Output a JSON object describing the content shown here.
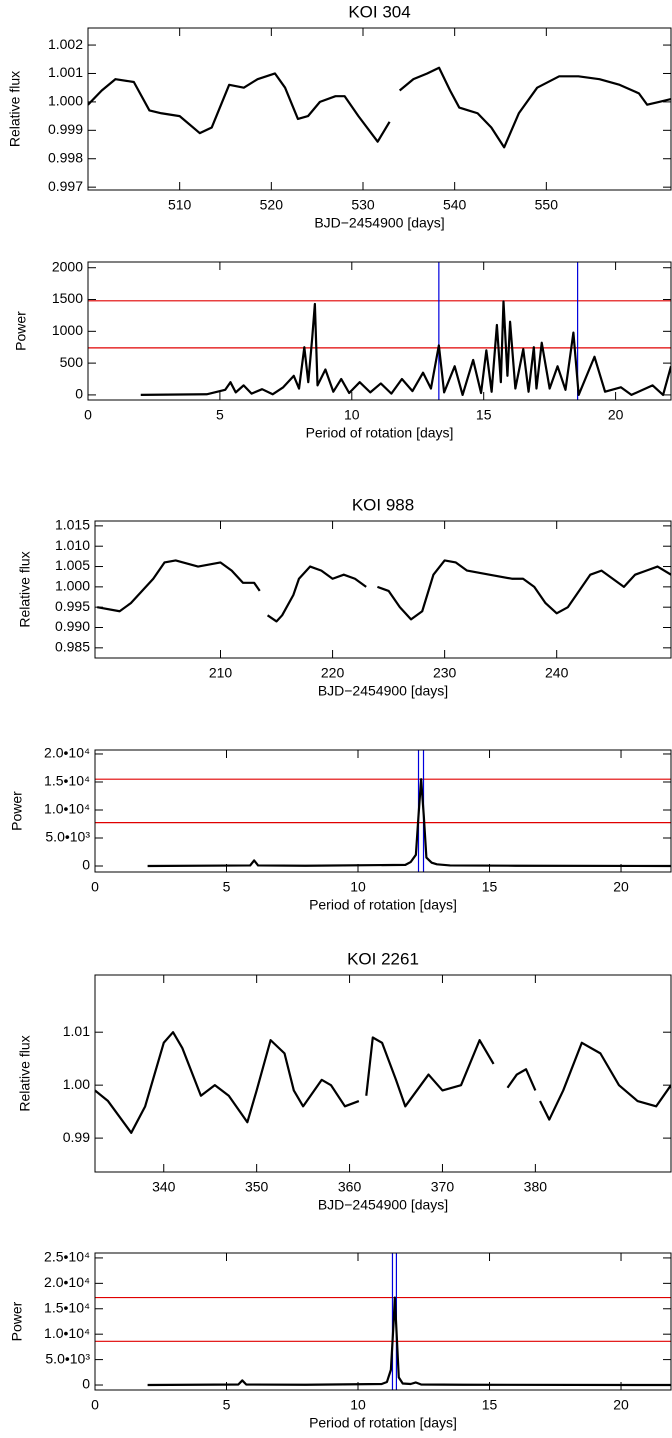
{
  "chart_data": [
    {
      "type": "line",
      "title": "KOI 304",
      "xlabel": "BJD−2454900 [days]",
      "ylabel": "Relative flux",
      "xlim": [
        500,
        563.6
      ],
      "ylim": [
        0.9969,
        1.0026
      ],
      "xticks": [
        510,
        520,
        530,
        540,
        550
      ],
      "yticks": [
        0.997,
        0.998,
        0.999,
        {
          "value": 1.0,
          "label": "1.000"
        },
        1.001,
        1.002
      ],
      "color": "#000000",
      "x": [
        500,
        501.5,
        503,
        505,
        506.7,
        508,
        510,
        512.2,
        513.5,
        515.4,
        517,
        518.5,
        520.4,
        521.5,
        522.9,
        524,
        525.3,
        527,
        528,
        529.5,
        531.6,
        532.9,
        null,
        534,
        535.5,
        537,
        538.3,
        539.5,
        540.5,
        541.5,
        542.5,
        544,
        545.4,
        547,
        549,
        551.4,
        553.5,
        555.8,
        558,
        560.1,
        561,
        562.3,
        563.6
      ],
      "values": [
        0.9999,
        1.0004,
        1.0008,
        1.0007,
        0.9997,
        0.9996,
        0.9995,
        0.9989,
        0.9991,
        1.0006,
        1.0005,
        1.0008,
        1.001,
        1.0005,
        0.9994,
        0.9995,
        1.0,
        1.0002,
        1.0002,
        0.9995,
        0.9986,
        0.9993,
        null,
        1.0004,
        1.0008,
        1.001,
        1.0012,
        1.0004,
        0.9998,
        0.9997,
        0.9996,
        0.9991,
        0.9984,
        0.9996,
        1.0005,
        1.0009,
        1.0009,
        1.0008,
        1.0006,
        1.0003,
        0.9999,
        1.0,
        1.0001
      ]
    },
    {
      "type": "line",
      "xlabel": "Period of rotation [days]",
      "ylabel": "Power",
      "xlim": [
        0,
        22.1
      ],
      "ylim": [
        -80,
        2090
      ],
      "xticks": [
        0,
        5,
        10,
        15,
        20
      ],
      "yticks": [
        0,
        500,
        1000,
        1500,
        2000
      ],
      "color": "#000000",
      "hlines": {
        "values": [
          1480,
          740
        ],
        "color": "#e00000"
      },
      "vlines": {
        "values": [
          13.3,
          18.56
        ],
        "color": "#0000dd"
      },
      "x": [
        2,
        4.5,
        5.2,
        5.4,
        5.6,
        5.9,
        6.2,
        6.6,
        7,
        7.4,
        7.8,
        8.0,
        8.2,
        8.35,
        8.5,
        8.6,
        8.7,
        9.0,
        9.3,
        9.6,
        9.9,
        10.3,
        10.7,
        11.1,
        11.5,
        11.9,
        12.3,
        12.7,
        13.0,
        13.3,
        13.5,
        13.9,
        14.2,
        14.6,
        14.9,
        15.1,
        15.3,
        15.5,
        15.65,
        15.75,
        15.9,
        16.0,
        16.2,
        16.5,
        16.7,
        16.9,
        17.0,
        17.2,
        17.5,
        17.8,
        18.1,
        18.4,
        18.6,
        19.2,
        19.6,
        20.2,
        20.6,
        21.4,
        21.8,
        22.1
      ],
      "values": [
        0,
        10,
        80,
        200,
        40,
        150,
        20,
        90,
        10,
        120,
        300,
        100,
        750,
        200,
        900,
        1430,
        150,
        400,
        50,
        250,
        30,
        200,
        40,
        180,
        20,
        250,
        60,
        350,
        100,
        780,
        40,
        450,
        0,
        550,
        30,
        700,
        50,
        1100,
        200,
        1470,
        300,
        1150,
        100,
        720,
        50,
        750,
        100,
        820,
        100,
        450,
        80,
        980,
        0,
        600,
        50,
        120,
        0,
        150,
        0,
        450
      ]
    },
    {
      "type": "line",
      "title": "KOI 988",
      "xlabel": "BJD−2454900 [days]",
      "ylabel": "Relative flux",
      "xlim": [
        198.8,
        250.2
      ],
      "ylim": [
        0.9825,
        1.0162
      ],
      "xticks": [
        210,
        220,
        230,
        240
      ],
      "yticks": [
        0.985,
        {
          "value": 0.99,
          "label": "0.990"
        },
        0.995,
        {
          "value": 1.0,
          "label": "1.000"
        },
        1.005,
        {
          "value": 1.01,
          "label": "1.010"
        },
        1.015
      ],
      "color": "#000000",
      "x": [
        199,
        201,
        202,
        204,
        205,
        206,
        208,
        210,
        211,
        212,
        213,
        213.5,
        null,
        214.2,
        215,
        215.5,
        216.5,
        217,
        218,
        219,
        220,
        221,
        222,
        223,
        null,
        224,
        225,
        226,
        227,
        228,
        229,
        230,
        231,
        232,
        234,
        236,
        237,
        238,
        239,
        240,
        241,
        242,
        243,
        244,
        245,
        246,
        247,
        248,
        249,
        250.2
      ],
      "values": [
        0.995,
        0.994,
        0.996,
        1.002,
        1.006,
        1.0065,
        1.005,
        1.006,
        1.004,
        1.001,
        1.001,
        0.999,
        null,
        0.993,
        0.9915,
        0.993,
        0.998,
        1.002,
        1.005,
        1.004,
        1.002,
        1.003,
        1.002,
        1.0,
        null,
        1.0,
        0.999,
        0.995,
        0.992,
        0.994,
        1.003,
        1.0065,
        1.006,
        1.004,
        1.003,
        1.002,
        1.002,
        1.0,
        0.996,
        0.9935,
        0.995,
        0.999,
        1.003,
        1.004,
        1.002,
        1.0,
        1.003,
        1.004,
        1.005,
        1.003
      ]
    },
    {
      "type": "line",
      "xlabel": "Period of rotation [days]",
      "ylabel": "Power",
      "xlim": [
        0,
        21.9
      ],
      "ylim": [
        -1070,
        20710
      ],
      "xticks": [
        0,
        5,
        10,
        15,
        20
      ],
      "yticks": [
        0,
        {
          "value": 5000,
          "label": "5.0•10³"
        },
        {
          "value": 10000,
          "label": "1.0•10⁴"
        },
        {
          "value": 15000,
          "label": "1.5•10⁴"
        },
        {
          "value": 20000,
          "label": "2.0•10⁴"
        }
      ],
      "color": "#000000",
      "hlines": {
        "values": [
          15500,
          7750
        ],
        "color": "#e00000"
      },
      "vlines": {
        "values": [
          12.3,
          12.49
        ],
        "color": "#0000dd"
      },
      "x": [
        2,
        5.9,
        6.05,
        6.2,
        8,
        11.8,
        12.0,
        12.2,
        12.3,
        12.4,
        12.5,
        12.6,
        12.8,
        13.0,
        13.5,
        16,
        21.9
      ],
      "values": [
        0,
        100,
        1000,
        100,
        50,
        200,
        700,
        2000,
        9000,
        15500,
        9000,
        1500,
        600,
        300,
        100,
        50,
        0
      ]
    },
    {
      "type": "line",
      "title": "KOI 2261",
      "xlabel": "BJD−2454900 [days]",
      "ylabel": "Relative flux",
      "xlim": [
        332.6,
        394.6
      ],
      "ylim": [
        0.9836,
        1.0208
      ],
      "xticks": [
        340,
        350,
        360,
        370,
        380
      ],
      "yticks": [
        0.99,
        {
          "value": 1.0,
          "label": "1.00"
        },
        1.01
      ],
      "color": "#000000",
      "x": [
        332.6,
        334,
        336.5,
        338,
        340,
        341,
        342,
        344,
        345.5,
        347,
        349,
        350,
        351.5,
        353,
        354,
        355,
        357,
        358,
        359.5,
        361,
        null,
        361.8,
        362.5,
        363.5,
        365,
        366,
        368.5,
        370,
        372,
        374,
        375.5,
        null,
        377,
        378,
        379,
        380,
        null,
        380.5,
        381.5,
        383,
        385,
        387,
        389,
        391,
        393,
        394.6
      ],
      "values": [
        0.999,
        0.997,
        0.991,
        0.996,
        1.008,
        1.01,
        1.007,
        0.998,
        1.0,
        0.998,
        0.993,
        0.999,
        1.0085,
        1.006,
        0.999,
        0.996,
        1.001,
        1.0,
        0.996,
        0.997,
        null,
        0.998,
        1.009,
        1.008,
        1.001,
        0.996,
        1.002,
        0.999,
        1.0,
        1.0085,
        1.004,
        null,
        0.9995,
        1.002,
        1.003,
        0.999,
        null,
        0.997,
        0.9935,
        0.999,
        1.008,
        1.006,
        1.0,
        0.997,
        0.996,
        1.0
      ]
    },
    {
      "type": "line",
      "xlabel": "Period of rotation [days]",
      "ylabel": "Power",
      "xlim": [
        0,
        21.9
      ],
      "ylim": [
        -980,
        25970
      ],
      "xticks": [
        0,
        5,
        10,
        15,
        20
      ],
      "yticks": [
        0,
        {
          "value": 5000,
          "label": "5.0•10³"
        },
        {
          "value": 10000,
          "label": "1.0•10⁴"
        },
        {
          "value": 15000,
          "label": "1.5•10⁴"
        },
        {
          "value": 20000,
          "label": "2.0•10⁴"
        },
        {
          "value": 25000,
          "label": "2.5•10⁴"
        }
      ],
      "color": "#000000",
      "hlines": {
        "values": [
          17200,
          8600
        ],
        "color": "#e00000"
      },
      "vlines": {
        "values": [
          11.31,
          11.46
        ],
        "color": "#0000dd"
      },
      "x": [
        2,
        5.45,
        5.6,
        5.75,
        8,
        10.9,
        11.1,
        11.25,
        11.35,
        11.4,
        11.45,
        11.55,
        11.7,
        12.0,
        12.2,
        12.4,
        14,
        21.9
      ],
      "values": [
        0,
        100,
        900,
        100,
        50,
        200,
        600,
        3000,
        12000,
        17200,
        12000,
        1500,
        300,
        200,
        500,
        100,
        50,
        0
      ]
    }
  ]
}
